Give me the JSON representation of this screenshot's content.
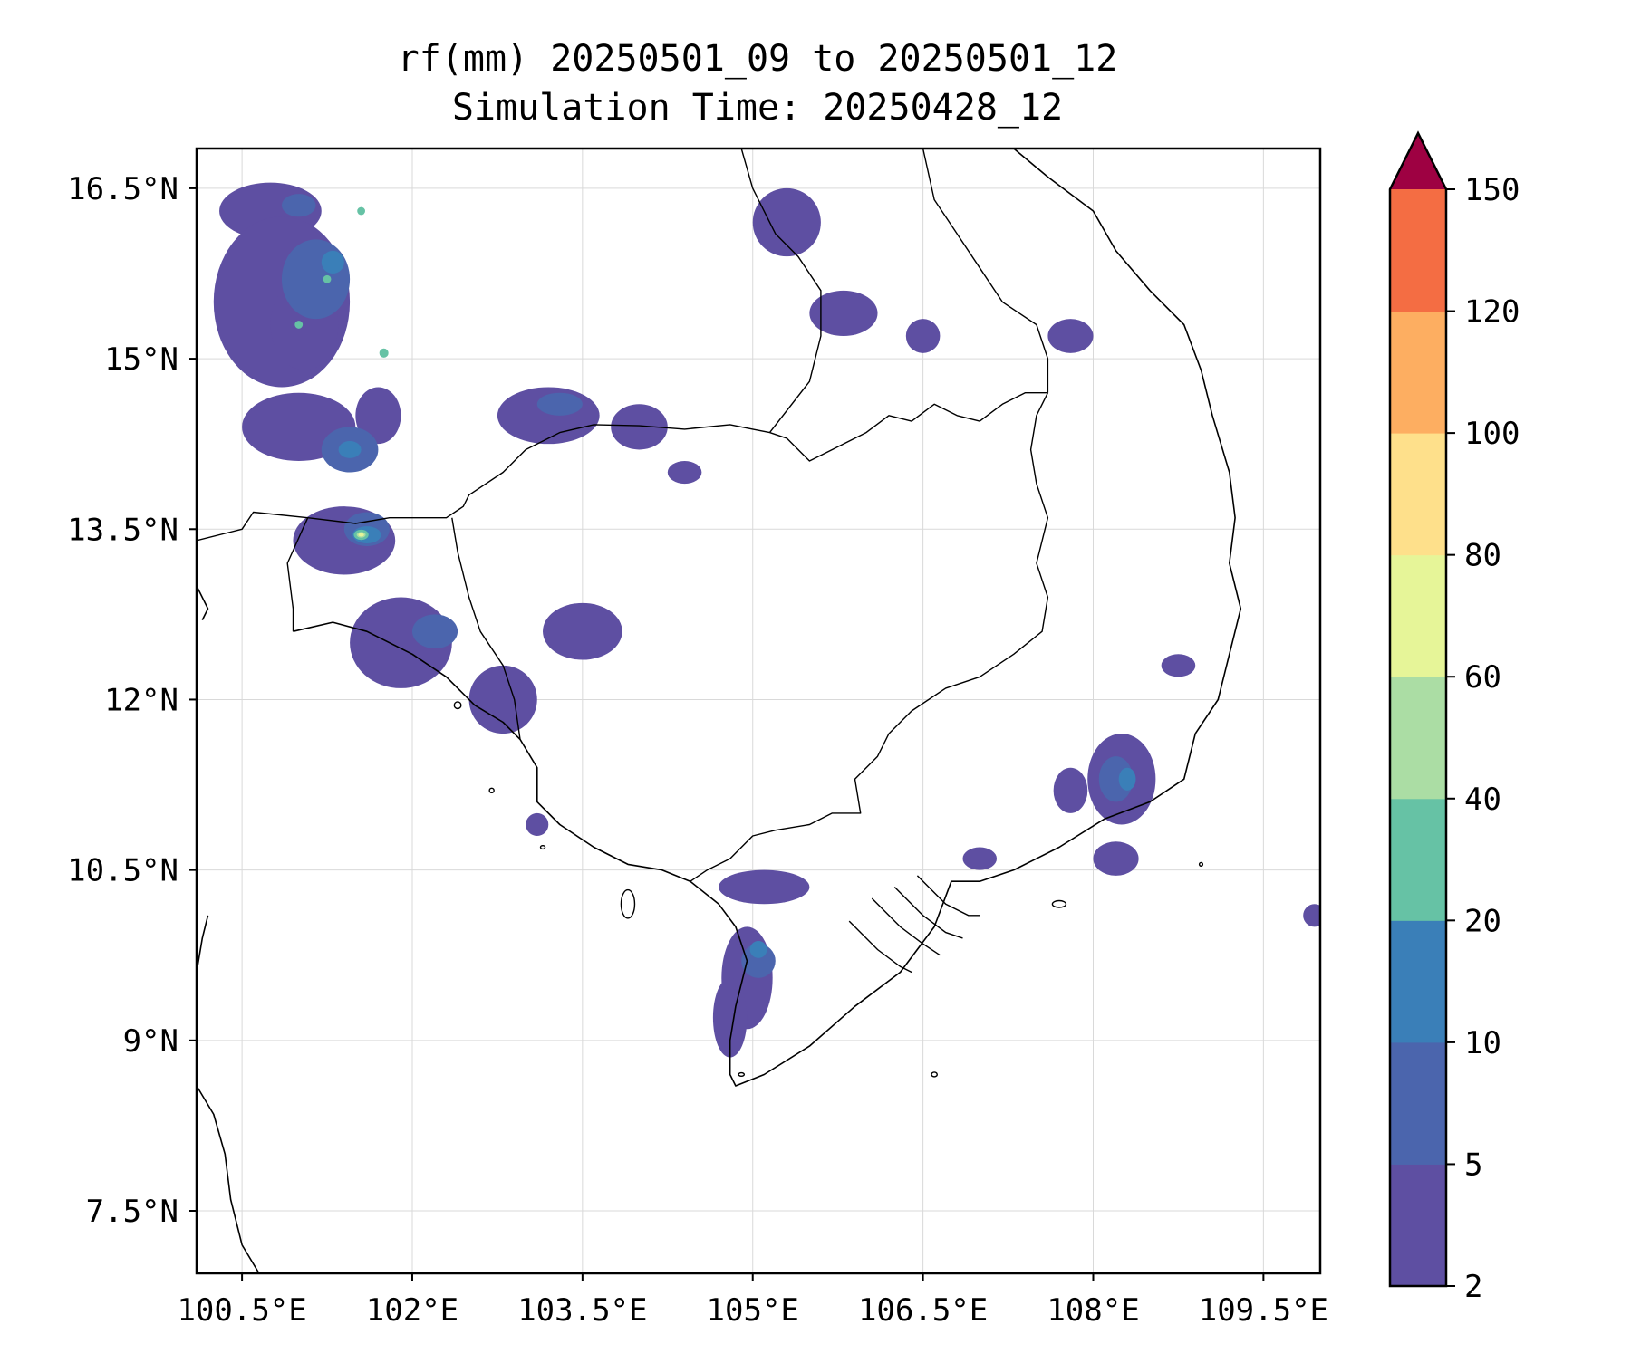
{
  "title": {
    "line1": "rf(mm) 20250501_09 to 20250501_12",
    "line2": "Simulation Time: 20250428_12"
  },
  "map": {
    "lon_range": [
      100.1,
      110.0
    ],
    "lat_range": [
      6.95,
      16.85
    ],
    "lon_ticks": [
      {
        "value": 100.5,
        "label": "100.5°E"
      },
      {
        "value": 102.0,
        "label": "102°E"
      },
      {
        "value": 103.5,
        "label": "103.5°E"
      },
      {
        "value": 105.0,
        "label": "105°E"
      },
      {
        "value": 106.5,
        "label": "106.5°E"
      },
      {
        "value": 108.0,
        "label": "108°E"
      },
      {
        "value": 109.5,
        "label": "109.5°E"
      }
    ],
    "lat_ticks": [
      {
        "value": 16.5,
        "label": "16.5°N"
      },
      {
        "value": 15.0,
        "label": "15°N"
      },
      {
        "value": 13.5,
        "label": "13.5°N"
      },
      {
        "value": 12.0,
        "label": "12°N"
      },
      {
        "value": 10.5,
        "label": "10.5°N"
      },
      {
        "value": 9.0,
        "label": "9°N"
      },
      {
        "value": 7.5,
        "label": "7.5°N"
      }
    ],
    "gridlines": true
  },
  "colorbar": {
    "levels": [
      "2",
      "5",
      "10",
      "20",
      "40",
      "60",
      "80",
      "100",
      "120",
      "150"
    ],
    "colors": [
      "#5e4fa2",
      "#4b65ad",
      "#3a7fb8",
      "#66c2a5",
      "#abdda4",
      "#e6f598",
      "#fee08b",
      "#fdae61",
      "#f46d43",
      "#d53e4f"
    ],
    "extend_color": "#9e0142",
    "extend": "max"
  },
  "rain_areas": [
    {
      "level": 0,
      "cells": [
        [
          100.75,
          16.3,
          0.9,
          0.5
        ],
        [
          100.85,
          15.5,
          1.2,
          1.5
        ],
        [
          101.0,
          14.4,
          1.0,
          0.6
        ],
        [
          101.4,
          13.4,
          0.9,
          0.6
        ],
        [
          101.9,
          12.5,
          0.9,
          0.8
        ],
        [
          102.8,
          12.0,
          0.6,
          0.6
        ],
        [
          103.2,
          14.5,
          0.9,
          0.5
        ],
        [
          103.5,
          12.6,
          0.7,
          0.5
        ],
        [
          104.0,
          14.4,
          0.5,
          0.4
        ],
        [
          105.3,
          16.2,
          0.6,
          0.6
        ],
        [
          105.8,
          15.4,
          0.6,
          0.4
        ],
        [
          104.95,
          9.55,
          0.45,
          0.9
        ],
        [
          105.1,
          10.35,
          0.8,
          0.3
        ],
        [
          104.8,
          9.2,
          0.3,
          0.7
        ],
        [
          108.25,
          11.3,
          0.6,
          0.8
        ],
        [
          107.8,
          11.2,
          0.3,
          0.4
        ],
        [
          107.8,
          15.2,
          0.4,
          0.3
        ],
        [
          106.5,
          15.2,
          0.3,
          0.3
        ],
        [
          108.75,
          12.3,
          0.3,
          0.2
        ],
        [
          104.4,
          14.0,
          0.3,
          0.2
        ],
        [
          101.05,
          15.3,
          0.6,
          0.8
        ],
        [
          101.7,
          14.5,
          0.4,
          0.5
        ],
        [
          103.1,
          10.9,
          0.2,
          0.2
        ],
        [
          107.0,
          10.6,
          0.3,
          0.2
        ],
        [
          108.2,
          10.6,
          0.4,
          0.3
        ],
        [
          109.95,
          10.1,
          0.2,
          0.2
        ]
      ]
    },
    {
      "level": 1,
      "cells": [
        [
          101.15,
          15.7,
          0.6,
          0.7
        ],
        [
          101.45,
          14.2,
          0.5,
          0.4
        ],
        [
          101.6,
          13.5,
          0.4,
          0.3
        ],
        [
          102.2,
          12.6,
          0.4,
          0.3
        ],
        [
          103.3,
          14.6,
          0.4,
          0.2
        ],
        [
          105.05,
          9.7,
          0.3,
          0.3
        ],
        [
          108.2,
          11.3,
          0.3,
          0.4
        ],
        [
          101.0,
          16.35,
          0.3,
          0.2
        ]
      ]
    },
    {
      "level": 2,
      "cells": [
        [
          101.6,
          13.45,
          0.25,
          0.15
        ],
        [
          101.3,
          15.85,
          0.2,
          0.2
        ],
        [
          101.45,
          14.2,
          0.2,
          0.15
        ],
        [
          108.3,
          11.3,
          0.15,
          0.2
        ],
        [
          105.05,
          9.8,
          0.15,
          0.15
        ]
      ]
    },
    {
      "level": 3,
      "cells": [
        [
          101.55,
          13.45,
          0.13,
          0.09
        ],
        [
          101.75,
          15.05,
          0.08,
          0.08
        ],
        [
          101.55,
          16.3,
          0.07,
          0.07
        ],
        [
          101.0,
          15.3,
          0.07,
          0.07
        ],
        [
          101.25,
          15.7,
          0.07,
          0.07
        ]
      ]
    },
    {
      "level": 4,
      "cells": [
        [
          101.55,
          13.45,
          0.08,
          0.05
        ]
      ]
    },
    {
      "level": 5,
      "cells": [
        [
          101.55,
          13.45,
          0.05,
          0.03
        ]
      ]
    }
  ],
  "borders": [
    {
      "points": [
        [
          101.08,
          13.6
        ],
        [
          101.5,
          13.55
        ],
        [
          101.8,
          13.6
        ],
        [
          102.3,
          13.6
        ],
        [
          102.45,
          13.7
        ],
        [
          102.5,
          13.8
        ],
        [
          102.8,
          14.0
        ],
        [
          103.0,
          14.2
        ],
        [
          103.3,
          14.35
        ],
        [
          103.6,
          14.42
        ],
        [
          104.0,
          14.41
        ],
        [
          104.4,
          14.38
        ],
        [
          104.8,
          14.42
        ],
        [
          105.0,
          14.38
        ],
        [
          105.15,
          14.35
        ]
      ]
    },
    {
      "points": [
        [
          105.15,
          14.35
        ],
        [
          105.3,
          14.3
        ],
        [
          105.5,
          14.1
        ],
        [
          105.7,
          14.2
        ],
        [
          105.9,
          14.3
        ],
        [
          106.0,
          14.35
        ],
        [
          106.2,
          14.5
        ],
        [
          106.4,
          14.45
        ],
        [
          106.6,
          14.6
        ],
        [
          106.8,
          14.5
        ],
        [
          107.0,
          14.45
        ],
        [
          107.2,
          14.6
        ],
        [
          107.4,
          14.7
        ],
        [
          107.6,
          14.7
        ]
      ]
    },
    {
      "points": [
        [
          107.6,
          14.7
        ],
        [
          107.5,
          14.5
        ],
        [
          107.45,
          14.2
        ],
        [
          107.5,
          13.9
        ],
        [
          107.6,
          13.6
        ],
        [
          107.5,
          13.2
        ],
        [
          107.6,
          12.9
        ],
        [
          107.55,
          12.6
        ],
        [
          107.3,
          12.4
        ],
        [
          107.0,
          12.2
        ],
        [
          106.7,
          12.1
        ],
        [
          106.4,
          11.9
        ],
        [
          106.2,
          11.7
        ],
        [
          106.1,
          11.5
        ],
        [
          105.9,
          11.3
        ],
        [
          105.95,
          11.0
        ],
        [
          105.7,
          11.0
        ],
        [
          105.5,
          10.9
        ],
        [
          105.2,
          10.85
        ],
        [
          105.0,
          10.8
        ],
        [
          104.8,
          10.6
        ],
        [
          104.6,
          10.5
        ],
        [
          104.45,
          10.4
        ]
      ]
    },
    {
      "points": [
        [
          102.95,
          11.65
        ],
        [
          102.9,
          12.0
        ],
        [
          102.8,
          12.3
        ],
        [
          102.6,
          12.6
        ],
        [
          102.5,
          12.9
        ],
        [
          102.4,
          13.3
        ],
        [
          102.35,
          13.6
        ]
      ]
    },
    {
      "points": [
        [
          105.15,
          14.35
        ],
        [
          105.5,
          14.8
        ],
        [
          105.6,
          15.2
        ],
        [
          105.6,
          15.6
        ],
        [
          105.4,
          15.9
        ],
        [
          105.2,
          16.1
        ],
        [
          105.0,
          16.5
        ],
        [
          104.9,
          16.85
        ]
      ]
    },
    {
      "points": [
        [
          107.6,
          14.7
        ],
        [
          107.6,
          15.0
        ],
        [
          107.5,
          15.3
        ],
        [
          107.2,
          15.5
        ],
        [
          107.0,
          15.8
        ],
        [
          106.8,
          16.1
        ],
        [
          106.6,
          16.4
        ],
        [
          106.5,
          16.85
        ]
      ]
    },
    {
      "points": [
        [
          100.1,
          13.4
        ],
        [
          100.5,
          13.5
        ],
        [
          100.6,
          13.65
        ],
        [
          101.08,
          13.6
        ],
        [
          100.9,
          13.2
        ],
        [
          100.95,
          12.8
        ],
        [
          100.95,
          12.6
        ]
      ]
    }
  ],
  "coasts": [
    {
      "points": [
        [
          100.95,
          12.6
        ],
        [
          101.3,
          12.68
        ],
        [
          101.6,
          12.6
        ],
        [
          102.0,
          12.4
        ],
        [
          102.3,
          12.2
        ],
        [
          102.55,
          11.95
        ],
        [
          102.8,
          11.8
        ],
        [
          102.95,
          11.65
        ],
        [
          103.1,
          11.4
        ],
        [
          103.1,
          11.1
        ],
        [
          103.3,
          10.9
        ],
        [
          103.6,
          10.7
        ],
        [
          103.9,
          10.55
        ],
        [
          104.2,
          10.5
        ],
        [
          104.45,
          10.4
        ],
        [
          104.7,
          10.2
        ],
        [
          104.85,
          10.0
        ],
        [
          104.95,
          9.7
        ],
        [
          104.85,
          9.3
        ],
        [
          104.8,
          9.0
        ],
        [
          104.8,
          8.7
        ],
        [
          104.85,
          8.6
        ],
        [
          105.1,
          8.7
        ],
        [
          105.5,
          8.95
        ],
        [
          105.9,
          9.3
        ],
        [
          106.3,
          9.6
        ],
        [
          106.6,
          10.0
        ],
        [
          106.75,
          10.4
        ],
        [
          107.0,
          10.4
        ],
        [
          107.3,
          10.5
        ],
        [
          107.7,
          10.7
        ],
        [
          108.1,
          10.95
        ],
        [
          108.5,
          11.1
        ],
        [
          108.8,
          11.3
        ],
        [
          108.9,
          11.7
        ],
        [
          109.1,
          12.0
        ],
        [
          109.2,
          12.4
        ],
        [
          109.3,
          12.8
        ],
        [
          109.2,
          13.2
        ],
        [
          109.25,
          13.6
        ],
        [
          109.2,
          14.0
        ],
        [
          109.05,
          14.5
        ],
        [
          108.95,
          14.9
        ],
        [
          108.8,
          15.3
        ],
        [
          108.5,
          15.6
        ],
        [
          108.2,
          15.95
        ],
        [
          108.0,
          16.3
        ],
        [
          107.6,
          16.6
        ],
        [
          107.3,
          16.85
        ]
      ]
    },
    {
      "points": [
        [
          100.1,
          8.6
        ],
        [
          100.25,
          8.35
        ],
        [
          100.35,
          8.0
        ],
        [
          100.4,
          7.6
        ],
        [
          100.5,
          7.2
        ],
        [
          100.65,
          6.95
        ]
      ]
    },
    {
      "points": [
        [
          100.1,
          9.6
        ],
        [
          100.15,
          9.9
        ],
        [
          100.2,
          10.1
        ]
      ]
    },
    {
      "points": [
        [
          100.1,
          13.0
        ],
        [
          100.2,
          12.8
        ],
        [
          100.15,
          12.7
        ]
      ]
    }
  ],
  "islands": [
    [
      103.9,
      10.2,
      0.12,
      0.25
    ],
    [
      104.9,
      8.7,
      0.05,
      0.03
    ],
    [
      106.6,
      8.7,
      0.05,
      0.04
    ],
    [
      102.4,
      11.95,
      0.06,
      0.06
    ],
    [
      102.7,
      11.2,
      0.04,
      0.04
    ],
    [
      103.15,
      10.7,
      0.04,
      0.03
    ],
    [
      107.7,
      10.2,
      0.12,
      0.06
    ],
    [
      108.95,
      10.55,
      0.03,
      0.03
    ]
  ],
  "delta_lines": [
    {
      "points": [
        [
          105.85,
          10.05
        ],
        [
          106.1,
          9.8
        ],
        [
          106.3,
          9.65
        ],
        [
          106.4,
          9.6
        ]
      ]
    },
    {
      "points": [
        [
          106.05,
          10.25
        ],
        [
          106.3,
          10.0
        ],
        [
          106.5,
          9.85
        ],
        [
          106.65,
          9.75
        ]
      ]
    },
    {
      "points": [
        [
          106.25,
          10.35
        ],
        [
          106.5,
          10.1
        ],
        [
          106.7,
          9.95
        ],
        [
          106.85,
          9.9
        ]
      ]
    },
    {
      "points": [
        [
          106.45,
          10.45
        ],
        [
          106.7,
          10.2
        ],
        [
          106.9,
          10.1
        ],
        [
          107.0,
          10.1
        ]
      ]
    }
  ]
}
